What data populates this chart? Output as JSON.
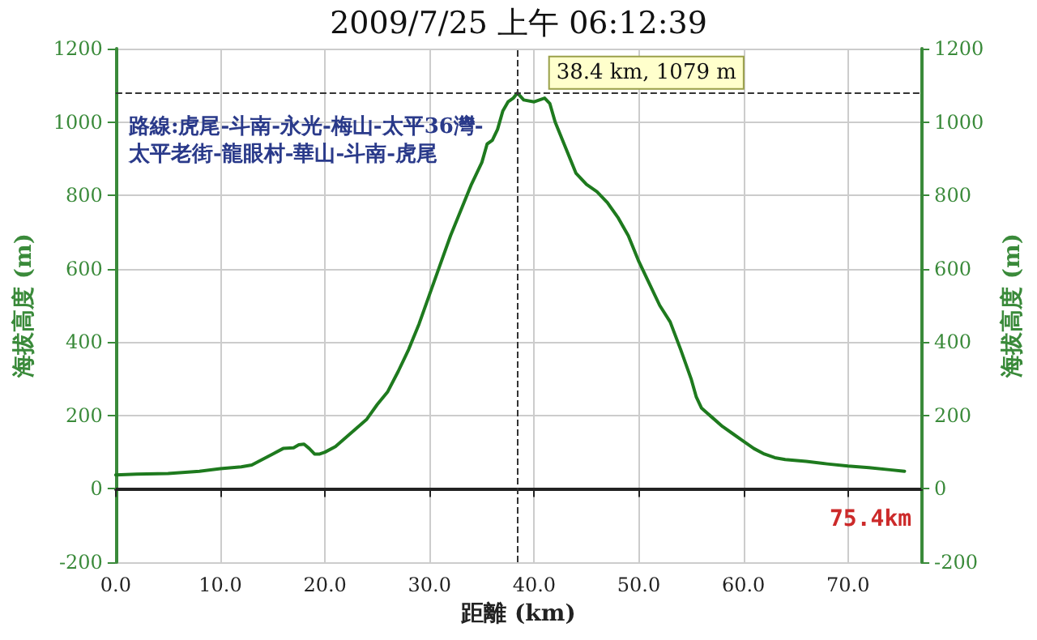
{
  "chart_data": {
    "type": "line",
    "title": "2009/7/25 上午 06:12:39",
    "xlabel": "距離 (km)",
    "ylabel": "海拔高度 (m)",
    "y2label": "海拔高度 (m)",
    "x": [
      0,
      2,
      5,
      8,
      10,
      12,
      13,
      14,
      15,
      16,
      17,
      17.5,
      18,
      18.5,
      19,
      19.5,
      20,
      21,
      22,
      23,
      24,
      25,
      26,
      27,
      28,
      29,
      30,
      31,
      32,
      33,
      34,
      35,
      35.5,
      36,
      36.5,
      37,
      37.5,
      38,
      38.4,
      39,
      40,
      41,
      41.5,
      42,
      43,
      44,
      45,
      46,
      47,
      48,
      49,
      50,
      51,
      52,
      53,
      54,
      55,
      55.5,
      56,
      57,
      58,
      59,
      60,
      61,
      62,
      63,
      64,
      66,
      68,
      70,
      72,
      74,
      75.4
    ],
    "series": [
      {
        "color": "#1e7a1e",
        "values": [
          38,
          40,
          42,
          48,
          55,
          60,
          65,
          80,
          95,
          110,
          112,
          120,
          122,
          110,
          95,
          95,
          100,
          115,
          140,
          165,
          190,
          230,
          265,
          320,
          380,
          450,
          530,
          610,
          690,
          760,
          830,
          890,
          940,
          950,
          980,
          1030,
          1055,
          1065,
          1079,
          1060,
          1055,
          1065,
          1050,
          1000,
          930,
          860,
          830,
          810,
          780,
          740,
          690,
          620,
          560,
          500,
          455,
          380,
          300,
          250,
          220,
          195,
          170,
          150,
          130,
          110,
          95,
          85,
          80,
          75,
          68,
          62,
          58,
          52,
          48
        ]
      }
    ],
    "xlim": [
      0,
      77
    ],
    "xticks": [
      {
        "value": 0,
        "label": "0.0"
      },
      {
        "value": 10,
        "label": "10.0"
      },
      {
        "value": 20,
        "label": "20.0"
      },
      {
        "value": 30,
        "label": "30.0"
      },
      {
        "value": 40,
        "label": "40.0"
      },
      {
        "value": 50,
        "label": "50.0"
      },
      {
        "value": 60,
        "label": "60.0"
      },
      {
        "value": 70,
        "label": "70.0"
      }
    ],
    "ylim": [
      -200,
      1200
    ],
    "yticks": [
      -200,
      0,
      200,
      400,
      600,
      800,
      1000,
      1200
    ],
    "y2lim": [
      -200,
      1200
    ],
    "y2ticks": [
      -200,
      0,
      200,
      400,
      600,
      800,
      1000,
      1200
    ],
    "ref_lines": [
      {
        "axis": "x",
        "value": 38.4,
        "line_style": "dashed",
        "color": "#333333"
      },
      {
        "axis": "y",
        "value": 1079,
        "line_style": "dashed",
        "color": "#333333"
      }
    ],
    "annotations": [
      "路線:虎尾-斗南-永光-梅山-太平36灣-太平老街-龍眼村-華山-斗南-虎尾",
      {
        "text": "38.4 km, 1079 m",
        "x": 38.4,
        "y": 1079
      },
      "75.4km"
    ],
    "grid": true,
    "marker": "none",
    "line_style": "solid"
  }
}
